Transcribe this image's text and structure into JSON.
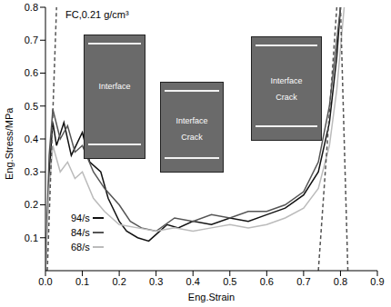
{
  "chart_data": {
    "type": "line",
    "title": "FC,0.21 g/cm³",
    "x_label": "Eng.Strain",
    "y_label": "Eng.Stress/MPa",
    "xlim": [
      0,
      0.9
    ],
    "ylim": [
      0,
      0.8
    ],
    "xticks": [
      {
        "value": 0,
        "label": "0.0"
      },
      0.1,
      0.2,
      0.3,
      0.4,
      0.5,
      0.6,
      0.7,
      0.8,
      0.9
    ],
    "yticks": [
      0.1,
      0.2,
      0.3,
      0.4,
      0.5,
      0.6,
      0.7,
      0.8
    ],
    "grid": false,
    "legend": "lower left",
    "series": [
      {
        "name": "94/s",
        "color": "#111111",
        "line_style": "solid",
        "x": [
          0,
          0.01,
          0.02,
          0.03,
          0.05,
          0.07,
          0.1,
          0.12,
          0.15,
          0.17,
          0.2,
          0.22,
          0.25,
          0.28,
          0.3,
          0.33,
          0.36,
          0.4,
          0.45,
          0.5,
          0.55,
          0.6,
          0.65,
          0.7,
          0.74,
          0.77,
          0.79,
          0.8
        ],
        "values": [
          0,
          0.3,
          0.45,
          0.38,
          0.45,
          0.35,
          0.42,
          0.33,
          0.3,
          0.22,
          0.15,
          0.12,
          0.1,
          0.09,
          0.11,
          0.14,
          0.13,
          0.15,
          0.14,
          0.16,
          0.15,
          0.17,
          0.19,
          0.23,
          0.3,
          0.45,
          0.65,
          0.8
        ]
      },
      {
        "name": "84/s",
        "color": "#555555",
        "line_style": "solid",
        "x": [
          0,
          0.01,
          0.02,
          0.04,
          0.06,
          0.08,
          0.1,
          0.13,
          0.16,
          0.2,
          0.23,
          0.26,
          0.3,
          0.35,
          0.4,
          0.45,
          0.5,
          0.55,
          0.6,
          0.65,
          0.7,
          0.74,
          0.77,
          0.79,
          0.8
        ],
        "values": [
          0,
          0.35,
          0.49,
          0.4,
          0.44,
          0.36,
          0.38,
          0.3,
          0.25,
          0.2,
          0.15,
          0.13,
          0.12,
          0.16,
          0.15,
          0.17,
          0.16,
          0.18,
          0.18,
          0.2,
          0.24,
          0.33,
          0.5,
          0.7,
          0.8
        ]
      },
      {
        "name": "68/s",
        "color": "#bbbbbb",
        "line_style": "solid",
        "x": [
          0,
          0.01,
          0.02,
          0.04,
          0.06,
          0.08,
          0.1,
          0.13,
          0.16,
          0.2,
          0.25,
          0.3,
          0.35,
          0.4,
          0.45,
          0.5,
          0.55,
          0.6,
          0.65,
          0.7,
          0.74,
          0.77,
          0.79,
          0.81
        ],
        "values": [
          0,
          0.25,
          0.38,
          0.3,
          0.33,
          0.28,
          0.3,
          0.22,
          0.18,
          0.14,
          0.13,
          0.12,
          0.13,
          0.12,
          0.13,
          0.14,
          0.13,
          0.14,
          0.16,
          0.19,
          0.25,
          0.38,
          0.55,
          0.8
        ]
      },
      {
        "color": "#555555",
        "line_style": "dashed",
        "x": [
          0.005,
          0.03
        ],
        "values": [
          0,
          0.8
        ]
      },
      {
        "color": "#555555",
        "line_style": "dashed",
        "x": [
          0.74,
          0.79
        ],
        "values": [
          0,
          0.8
        ]
      },
      {
        "color": "#555555",
        "line_style": "dashed",
        "x": [
          0.82,
          0.8
        ],
        "values": [
          0,
          0.8
        ]
      }
    ],
    "insets": [
      {
        "labels": [
          "Interface"
        ]
      },
      {
        "labels": [
          "Interface",
          "Crack"
        ]
      },
      {
        "labels": [
          "Interface",
          "Crack"
        ]
      }
    ]
  }
}
